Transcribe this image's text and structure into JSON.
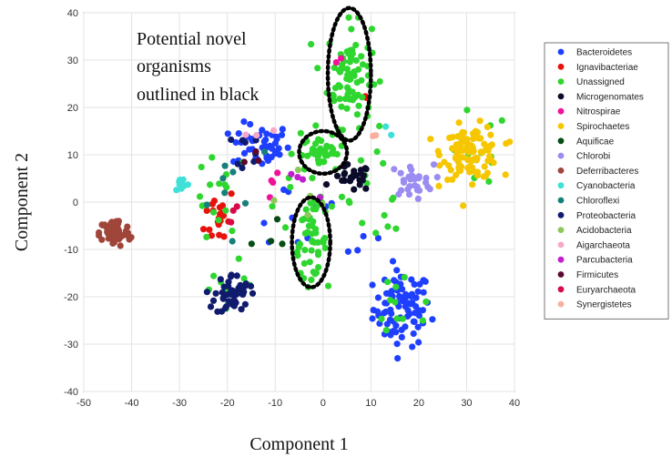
{
  "chart_data": {
    "type": "scatter",
    "xlabel": "Component 1",
    "ylabel": "Component 2",
    "xlim": [
      -50,
      40
    ],
    "ylim": [
      -40,
      40
    ],
    "xticks": [
      -50,
      -40,
      -30,
      -20,
      -10,
      0,
      10,
      20,
      30,
      40
    ],
    "yticks": [
      -40,
      -30,
      -20,
      -10,
      0,
      10,
      20,
      30,
      40
    ],
    "grid": true,
    "legend_position": "right-outside",
    "annotation": {
      "lines": [
        "Potential novel",
        "organisms",
        "outlined in black"
      ]
    },
    "outlined_regions": [
      {
        "cx": 5.5,
        "cy": 27,
        "rx": 4.5,
        "ry": 14
      },
      {
        "cx": 0,
        "cy": 10.5,
        "rx": 5,
        "ry": 4.5
      },
      {
        "cx": -2.5,
        "cy": -8.5,
        "rx": 4,
        "ry": 9.5
      }
    ],
    "series": [
      {
        "name": "Bacteroidetes",
        "color": "#1f3fff",
        "clusters": [
          {
            "cx": 16.5,
            "cy": -22.5,
            "sx": 3.0,
            "sy": 4.0,
            "n": 90
          },
          {
            "cx": -13,
            "cy": 12,
            "sx": 3.0,
            "sy": 2.3,
            "n": 45
          },
          {
            "cx": -6,
            "cy": -3,
            "sx": 6,
            "sy": 5,
            "n": 10
          },
          {
            "cx": 8,
            "cy": -8,
            "sx": 3,
            "sy": 2,
            "n": 4
          }
        ]
      },
      {
        "name": "Ignavibacteriae",
        "color": "#e8120c",
        "clusters": [
          {
            "cx": -21.5,
            "cy": -3,
            "sx": 1.6,
            "sy": 3.2,
            "n": 20
          },
          {
            "cx": 9,
            "cy": 23,
            "sx": 1.0,
            "sy": 1.0,
            "n": 2
          }
        ]
      },
      {
        "name": "Unassigned",
        "color": "#2fd62f",
        "clusters": [
          {
            "cx": 5.5,
            "cy": 27,
            "sx": 2.3,
            "sy": 5.5,
            "n": 80
          },
          {
            "cx": 0,
            "cy": 10.5,
            "sx": 2.2,
            "sy": 1.6,
            "n": 32
          },
          {
            "cx": -2.5,
            "cy": -8.5,
            "sx": 1.6,
            "sy": 3.6,
            "n": 40
          },
          {
            "cx": 0,
            "cy": 0,
            "sx": 12,
            "sy": 10,
            "n": 40
          },
          {
            "cx": 17,
            "cy": -22,
            "sx": 4,
            "sy": 5,
            "n": 12
          },
          {
            "cx": 31,
            "cy": 11,
            "sx": 4,
            "sy": 4,
            "n": 12
          },
          {
            "cx": -20,
            "cy": -20,
            "sx": 3,
            "sy": 3,
            "n": 8
          },
          {
            "cx": -22,
            "cy": 0,
            "sx": 2.5,
            "sy": 5,
            "n": 12
          }
        ]
      },
      {
        "name": "Microgenomates",
        "color": "#0b0b2a",
        "clusters": [
          {
            "cx": 6,
            "cy": 5,
            "sx": 2.0,
            "sy": 1.4,
            "n": 26
          }
        ]
      },
      {
        "name": "Nitrospirae",
        "color": "#f0129a",
        "clusters": [
          {
            "cx": -10,
            "cy": 2.5,
            "sx": 1.5,
            "sy": 1.5,
            "n": 4
          },
          {
            "cx": 3,
            "cy": 29,
            "sx": 1,
            "sy": 1,
            "n": 2
          }
        ]
      },
      {
        "name": "Spirochaetes",
        "color": "#f6c700",
        "clusters": [
          {
            "cx": 31,
            "cy": 10.5,
            "sx": 3.0,
            "sy": 2.8,
            "n": 110
          }
        ]
      },
      {
        "name": "Aquificae",
        "color": "#064d14",
        "clusters": [
          {
            "cx": -12,
            "cy": -7,
            "sx": 4,
            "sy": 4,
            "n": 4
          }
        ]
      },
      {
        "name": "Chlorobi",
        "color": "#9a8cf0",
        "clusters": [
          {
            "cx": 18.5,
            "cy": 4.5,
            "sx": 2.3,
            "sy": 1.7,
            "n": 30
          }
        ]
      },
      {
        "name": "Deferribacteres",
        "color": "#a0453a",
        "clusters": [
          {
            "cx": -43.5,
            "cy": -6.5,
            "sx": 1.6,
            "sy": 1.5,
            "n": 60
          }
        ]
      },
      {
        "name": "Cyanobacteria",
        "color": "#3ee0d8",
        "clusters": [
          {
            "cx": -29.5,
            "cy": 4,
            "sx": 0.8,
            "sy": 0.9,
            "n": 10
          },
          {
            "cx": 14,
            "cy": 15,
            "sx": 1,
            "sy": 1,
            "n": 2
          }
        ]
      },
      {
        "name": "Chloroflexi",
        "color": "#17807a",
        "clusters": [
          {
            "cx": -18,
            "cy": 6,
            "sx": 5,
            "sy": 5,
            "n": 8
          }
        ]
      },
      {
        "name": "Proteobacteria",
        "color": "#101b6e",
        "clusters": [
          {
            "cx": -19,
            "cy": -19.5,
            "sx": 1.8,
            "sy": 2.2,
            "n": 50
          },
          {
            "cx": -14,
            "cy": 11,
            "sx": 2,
            "sy": 2,
            "n": 8
          }
        ]
      },
      {
        "name": "Acidobacteria",
        "color": "#8cc85a",
        "clusters": [
          {
            "cx": -5,
            "cy": 5,
            "sx": 5,
            "sy": 4,
            "n": 6
          }
        ]
      },
      {
        "name": "Aigarchaeota",
        "color": "#f7a8c8",
        "clusters": [
          {
            "cx": -14,
            "cy": 16,
            "sx": 2,
            "sy": 2,
            "n": 3
          }
        ]
      },
      {
        "name": "Parcubacteria",
        "color": "#c21fd0",
        "clusters": [
          {
            "cx": -5,
            "cy": 2,
            "sx": 3,
            "sy": 3,
            "n": 4
          }
        ]
      },
      {
        "name": "Firmicutes",
        "color": "#5a0a30",
        "clusters": [
          {
            "cx": -16,
            "cy": 9,
            "sx": 2,
            "sy": 2,
            "n": 3
          }
        ]
      },
      {
        "name": "Euryarchaeota",
        "color": "#d80a4a",
        "clusters": [
          {
            "cx": -20,
            "cy": -2,
            "sx": 2,
            "sy": 2,
            "n": 3
          }
        ]
      },
      {
        "name": "Synergistetes",
        "color": "#f7b0a0",
        "clusters": [
          {
            "cx": 10,
            "cy": 13,
            "sx": 1,
            "sy": 1,
            "n": 2
          }
        ]
      }
    ]
  }
}
